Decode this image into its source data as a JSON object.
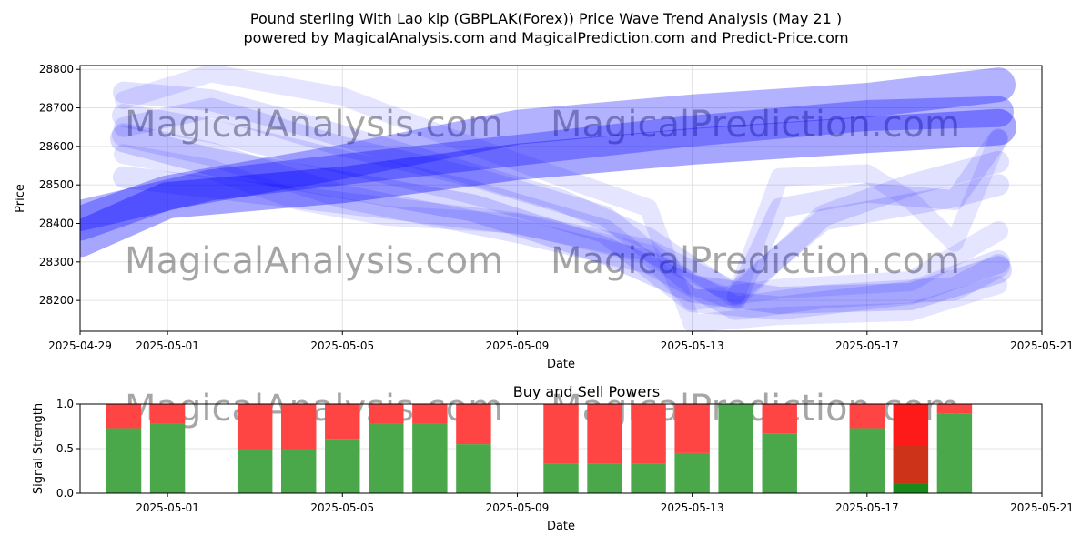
{
  "title_line1": "Pound sterling With Lao kip (GBPLAK(Forex)) Price Wave Trend Analysis (May 21 )",
  "title_line2": "powered by MagicalAnalysis.com and MagicalPrediction.com and Predict-Price.com",
  "watermarks": [
    "MagicalAnalysis.com",
    "MagicalPrediction.com"
  ],
  "colors": {
    "wave": "#0000ff",
    "buy": "#4aa84a",
    "sell": "#ff4444",
    "buy_dark": "#1a8a1a",
    "sell_mid": "#cc3319",
    "sell_bright": "#ff1a1a"
  },
  "chart_data": [
    {
      "type": "line",
      "title": "",
      "xlabel": "Date",
      "ylabel": "Price",
      "xlim": [
        "2025-04-29",
        "2025-05-21"
      ],
      "ylim": [
        28120,
        28810
      ],
      "x_ticks": [
        "2025-04-29",
        "2025-05-01",
        "2025-05-05",
        "2025-05-09",
        "2025-05-13",
        "2025-05-17",
        "2025-05-21"
      ],
      "y_ticks": [
        28200,
        28300,
        28400,
        28500,
        28600,
        28700,
        28800
      ],
      "grid": true,
      "series": [
        {
          "x": [
            "2025-04-29",
            "2025-05-01",
            "2025-05-05",
            "2025-05-09",
            "2025-05-13",
            "2025-05-17",
            "2025-05-20"
          ],
          "y": [
            28400,
            28480,
            28560,
            28650,
            28690,
            28720,
            28760
          ],
          "alpha": 0.3,
          "width": 38
        },
        {
          "x": [
            "2025-04-29",
            "2025-05-01",
            "2025-05-05",
            "2025-05-09",
            "2025-05-13",
            "2025-05-17",
            "2025-05-20"
          ],
          "y": [
            28360,
            28460,
            28500,
            28560,
            28600,
            28630,
            28650
          ],
          "alpha": 0.35,
          "width": 40
        },
        {
          "x": [
            "2025-04-29",
            "2025-05-02",
            "2025-05-05",
            "2025-05-09",
            "2025-05-13",
            "2025-05-17",
            "2025-05-20"
          ],
          "y": [
            28420,
            28500,
            28540,
            28590,
            28640,
            28680,
            28690
          ],
          "alpha": 0.3,
          "width": 34
        },
        {
          "x": [
            "2025-04-30",
            "2025-05-02",
            "2025-05-05",
            "2025-05-08",
            "2025-05-11",
            "2025-05-13",
            "2025-05-15",
            "2025-05-18",
            "2025-05-20"
          ],
          "y": [
            28620,
            28560,
            28500,
            28440,
            28330,
            28230,
            28200,
            28210,
            28280
          ],
          "alpha": 0.15,
          "width": 30
        },
        {
          "x": [
            "2025-04-30",
            "2025-05-02",
            "2025-05-05",
            "2025-05-08",
            "2025-05-11",
            "2025-05-13",
            "2025-05-15",
            "2025-05-18",
            "2025-05-20"
          ],
          "y": [
            28680,
            28640,
            28560,
            28480,
            28380,
            28200,
            28180,
            28220,
            28300
          ],
          "alpha": 0.12,
          "width": 26
        },
        {
          "x": [
            "2025-04-30",
            "2025-05-02",
            "2025-05-04",
            "2025-05-07",
            "2025-05-10",
            "2025-05-12",
            "2025-05-14",
            "2025-05-16",
            "2025-05-18",
            "2025-05-20"
          ],
          "y": [
            28740,
            28720,
            28660,
            28560,
            28460,
            28360,
            28210,
            28420,
            28500,
            28560
          ],
          "alpha": 0.12,
          "width": 24
        },
        {
          "x": [
            "2025-04-30",
            "2025-05-02",
            "2025-05-05",
            "2025-05-08",
            "2025-05-11",
            "2025-05-13",
            "2025-05-14",
            "2025-05-15",
            "2025-05-17",
            "2025-05-19",
            "2025-05-20"
          ],
          "y": [
            28650,
            28700,
            28600,
            28520,
            28420,
            28240,
            28200,
            28440,
            28480,
            28460,
            28620
          ],
          "alpha": 0.12,
          "width": 22
        },
        {
          "x": [
            "2025-04-30",
            "2025-05-02",
            "2025-05-04",
            "2025-05-06",
            "2025-05-09",
            "2025-05-12",
            "2025-05-13",
            "2025-05-15",
            "2025-05-18",
            "2025-05-20"
          ],
          "y": [
            28580,
            28540,
            28460,
            28420,
            28400,
            28320,
            28200,
            28230,
            28250,
            28380
          ],
          "alpha": 0.1,
          "width": 22
        },
        {
          "x": [
            "2025-04-30",
            "2025-05-02",
            "2025-05-05",
            "2025-05-09",
            "2025-05-12",
            "2025-05-14",
            "2025-05-16",
            "2025-05-19",
            "2025-05-20"
          ],
          "y": [
            28630,
            28580,
            28470,
            28380,
            28300,
            28180,
            28210,
            28230,
            28290
          ],
          "alpha": 0.12,
          "width": 26
        },
        {
          "x": [
            "2025-04-30",
            "2025-05-02",
            "2025-05-05",
            "2025-05-08",
            "2025-05-12",
            "2025-05-13",
            "2025-05-15",
            "2025-05-18",
            "2025-05-20"
          ],
          "y": [
            28720,
            28790,
            28730,
            28600,
            28440,
            28140,
            28160,
            28170,
            28240
          ],
          "alpha": 0.1,
          "width": 20
        },
        {
          "x": [
            "2025-04-30",
            "2025-05-03",
            "2025-05-06",
            "2025-05-09",
            "2025-05-12",
            "2025-05-14",
            "2025-05-16",
            "2025-05-19",
            "2025-05-20"
          ],
          "y": [
            28520,
            28480,
            28440,
            28400,
            28330,
            28220,
            28410,
            28470,
            28500
          ],
          "alpha": 0.12,
          "width": 24
        },
        {
          "x": [
            "2025-05-14",
            "2025-05-15",
            "2025-05-17",
            "2025-05-18",
            "2025-05-19",
            "2025-05-20"
          ],
          "y": [
            28210,
            28520,
            28530,
            28460,
            28350,
            28620
          ],
          "alpha": 0.1,
          "width": 20
        }
      ]
    },
    {
      "type": "bar",
      "title": "Buy and Sell Powers",
      "xlabel": "Date",
      "ylabel": "Signal Strength",
      "xlim": [
        "2025-04-29",
        "2025-05-21"
      ],
      "ylim": [
        0,
        1.0
      ],
      "x_ticks": [
        "2025-05-01",
        "2025-05-05",
        "2025-05-09",
        "2025-05-13",
        "2025-05-17",
        "2025-05-21"
      ],
      "y_ticks": [
        0.0,
        0.5,
        1.0
      ],
      "grid": true,
      "categories": [
        "2025-04-30",
        "2025-05-01",
        "2025-05-03",
        "2025-05-04",
        "2025-05-05",
        "2025-05-06",
        "2025-05-07",
        "2025-05-08",
        "2025-05-10",
        "2025-05-11",
        "2025-05-12",
        "2025-05-13",
        "2025-05-14",
        "2025-05-15",
        "2025-05-17",
        "2025-05-18",
        "2025-05-19"
      ],
      "series": [
        {
          "name": "Buy",
          "values": [
            0.73,
            0.78,
            0.5,
            0.5,
            0.61,
            0.78,
            0.78,
            0.55,
            0.33,
            0.33,
            0.33,
            0.45,
            1.0,
            0.67,
            0.73,
            0.11,
            0.89
          ]
        },
        {
          "name": "Sell",
          "values": [
            0.27,
            0.22,
            0.5,
            0.5,
            0.39,
            0.22,
            0.22,
            0.45,
            0.67,
            0.67,
            0.67,
            0.55,
            0.0,
            0.33,
            0.27,
            0.89,
            0.11
          ]
        }
      ],
      "overlay": {
        "date": "2025-05-18",
        "buy_dark": 0.11,
        "sell_mid": 0.54
      }
    }
  ]
}
